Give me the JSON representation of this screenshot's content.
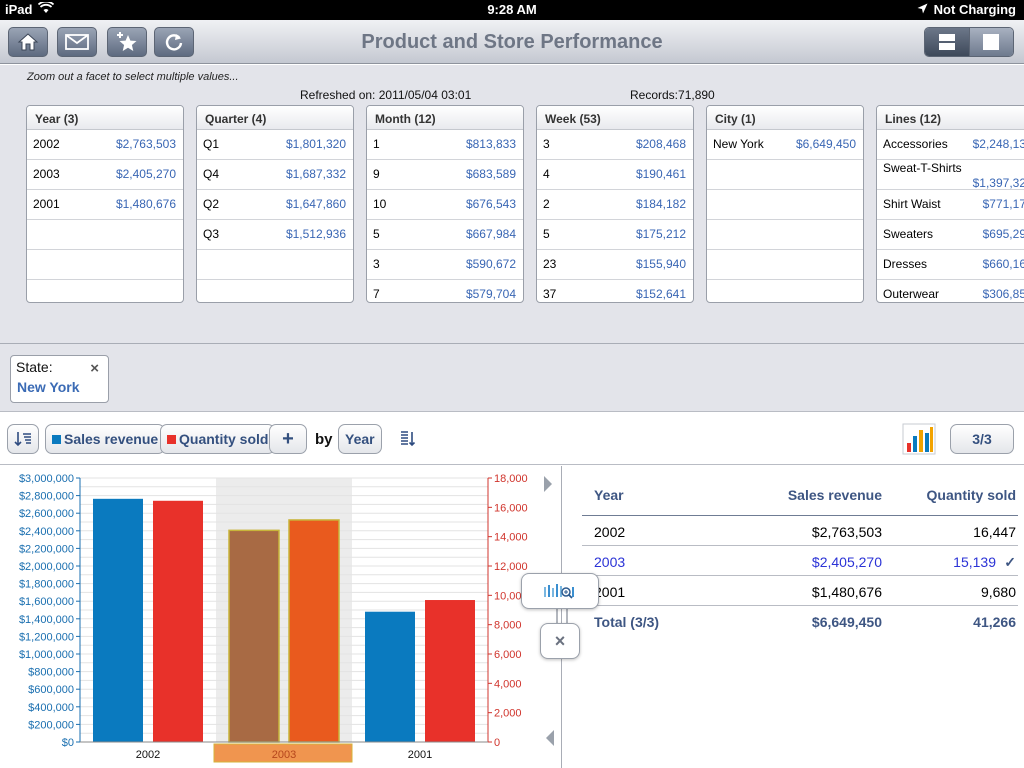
{
  "status_bar": {
    "device": "iPad",
    "time": "9:28 AM",
    "battery": "Not Charging"
  },
  "toolbar": {
    "title": "Product and Store Performance",
    "buttons": [
      "home-icon",
      "mail-icon",
      "favorite-add-icon",
      "refresh-icon"
    ],
    "view_modes": [
      "split-view-icon",
      "single-view-icon"
    ]
  },
  "facet_panel": {
    "hint": "Zoom out a facet to select multiple values...",
    "refreshed": "Refreshed on: 2011/05/04 03:01",
    "records": "Records:71,890",
    "facets": [
      {
        "header": "Year (3)",
        "rows": [
          {
            "label": "2002",
            "value": "$2,763,503"
          },
          {
            "label": "2003",
            "value": "$2,405,270"
          },
          {
            "label": "2001",
            "value": "$1,480,676"
          },
          {
            "label": "",
            "value": ""
          },
          {
            "label": "",
            "value": ""
          },
          {
            "label": "",
            "value": ""
          }
        ]
      },
      {
        "header": "Quarter (4)",
        "rows": [
          {
            "label": "Q1",
            "value": "$1,801,320"
          },
          {
            "label": "Q4",
            "value": "$1,687,332"
          },
          {
            "label": "Q2",
            "value": "$1,647,860"
          },
          {
            "label": "Q3",
            "value": "$1,512,936"
          },
          {
            "label": "",
            "value": ""
          },
          {
            "label": "",
            "value": ""
          }
        ]
      },
      {
        "header": "Month (12)",
        "rows": [
          {
            "label": "1",
            "value": "$813,833"
          },
          {
            "label": "9",
            "value": "$683,589"
          },
          {
            "label": "10",
            "value": "$676,543"
          },
          {
            "label": "5",
            "value": "$667,984"
          },
          {
            "label": "3",
            "value": "$590,672"
          },
          {
            "label": "7",
            "value": "$579,704"
          }
        ]
      },
      {
        "header": "Week (53)",
        "rows": [
          {
            "label": "3",
            "value": "$208,468"
          },
          {
            "label": "4",
            "value": "$190,461"
          },
          {
            "label": "2",
            "value": "$184,182"
          },
          {
            "label": "5",
            "value": "$175,212"
          },
          {
            "label": "23",
            "value": "$155,940"
          },
          {
            "label": "37",
            "value": "$152,641"
          }
        ]
      },
      {
        "header": "City (1)",
        "rows": [
          {
            "label": "New York",
            "value": "$6,649,450"
          },
          {
            "label": "",
            "value": ""
          },
          {
            "label": "",
            "value": ""
          },
          {
            "label": "",
            "value": ""
          },
          {
            "label": "",
            "value": ""
          },
          {
            "label": "",
            "value": ""
          }
        ]
      },
      {
        "header": "Lines (12)",
        "rows": [
          {
            "label": "Accessories",
            "value": "$2,248,13"
          },
          {
            "label": "Sweat-T-Shirts",
            "value": "$1,397,32",
            "two_line": true
          },
          {
            "label": "Shirt Waist",
            "value": "$771,17"
          },
          {
            "label": "Sweaters",
            "value": "$695,29"
          },
          {
            "label": "Dresses",
            "value": "$660,16"
          },
          {
            "label": "Outerwear",
            "value": "$306,85"
          }
        ]
      }
    ]
  },
  "filter": {
    "label": "State:",
    "value": "New York",
    "remove": "×"
  },
  "chart_toolbar": {
    "measures": [
      {
        "label": "Sales revenue",
        "color": "#0a7abf"
      },
      {
        "label": "Quantity sold",
        "color": "#e8312a"
      }
    ],
    "add_label": "+",
    "by_label": "by",
    "dimension": "Year",
    "page_indicator": "3/3"
  },
  "chart_data": {
    "type": "bar",
    "categories": [
      "2002",
      "2003",
      "2001"
    ],
    "selected_category": "2003",
    "series": [
      {
        "name": "Sales revenue",
        "axis": "left",
        "color": "#0a7abf",
        "selected_color": "#a86a44",
        "values": [
          2763503,
          2405270,
          1480676
        ]
      },
      {
        "name": "Quantity sold",
        "axis": "right",
        "color": "#e8312a",
        "selected_color": "#e95a1e",
        "values": [
          16447,
          15139,
          9680
        ]
      }
    ],
    "left_axis": {
      "min": 0,
      "max": 3000000,
      "step": 200000,
      "ticks": [
        "$0",
        "$200,000",
        "$400,000",
        "$600,000",
        "$800,000",
        "$1,000,000",
        "$1,200,000",
        "$1,400,000",
        "$1,600,000",
        "$1,800,000",
        "$2,000,000",
        "$2,200,000",
        "$2,400,000",
        "$2,600,000",
        "$2,800,000",
        "$3,000,000"
      ]
    },
    "right_axis": {
      "min": 0,
      "max": 18000,
      "step": 2000,
      "ticks": [
        "0",
        "2,000",
        "4,000",
        "6,000",
        "8,000",
        "10,000",
        "12,000",
        "14,000",
        "16,000",
        "18,000"
      ]
    },
    "left_axis_color": "#1a6fb0",
    "right_axis_color": "#d0342c",
    "grid": true
  },
  "data_table": {
    "headers": [
      "Year",
      "Sales revenue",
      "Quantity sold"
    ],
    "rows": [
      {
        "year": "2002",
        "revenue": "$2,763,503",
        "quantity": "16,447",
        "selected": false
      },
      {
        "year": "2003",
        "revenue": "$2,405,270",
        "quantity": "15,139",
        "selected": true
      },
      {
        "year": "2001",
        "revenue": "$1,480,676",
        "quantity": "9,680",
        "selected": false
      }
    ],
    "total": {
      "label": "Total (3/3)",
      "revenue": "$6,649,450",
      "quantity": "41,266"
    },
    "check": "✓"
  },
  "popover": {
    "zoom_icon": "chart-zoom-icon",
    "close": "×"
  }
}
